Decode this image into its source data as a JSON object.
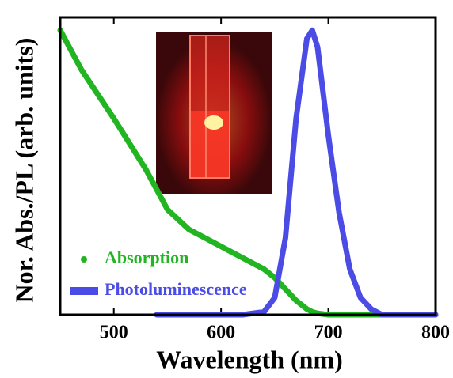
{
  "chart_data": {
    "type": "line",
    "x_label": "Wavelength (nm)",
    "y_label": "Nor. Abs./PL (arb. units)",
    "x": [
      450,
      470,
      500,
      530,
      540,
      550,
      570,
      600,
      620,
      640,
      650,
      660,
      670,
      680,
      685,
      690,
      700,
      710,
      720,
      730,
      740,
      750,
      800
    ],
    "series": [
      {
        "name": "Absorption",
        "color": "#22b522",
        "marker": "circle",
        "values": [
          1.0,
          0.86,
          0.69,
          0.51,
          0.44,
          0.37,
          0.3,
          0.24,
          0.2,
          0.16,
          0.13,
          0.09,
          0.05,
          0.02,
          0.01,
          0.005,
          0,
          0,
          0,
          0,
          0,
          0,
          0
        ]
      },
      {
        "name": "Photoluminescence",
        "color": "#4b4be6",
        "marker": "square",
        "values": [
          null,
          null,
          null,
          null,
          0,
          0,
          0,
          0,
          0,
          0.01,
          0.06,
          0.27,
          0.69,
          0.97,
          1.0,
          0.94,
          0.63,
          0.36,
          0.16,
          0.06,
          0.02,
          0,
          0
        ]
      }
    ],
    "xlim": [
      450,
      800
    ],
    "xticks": [
      500,
      600,
      700,
      800
    ],
    "ylim": [
      0,
      1.045
    ],
    "legend": "lower left"
  }
}
